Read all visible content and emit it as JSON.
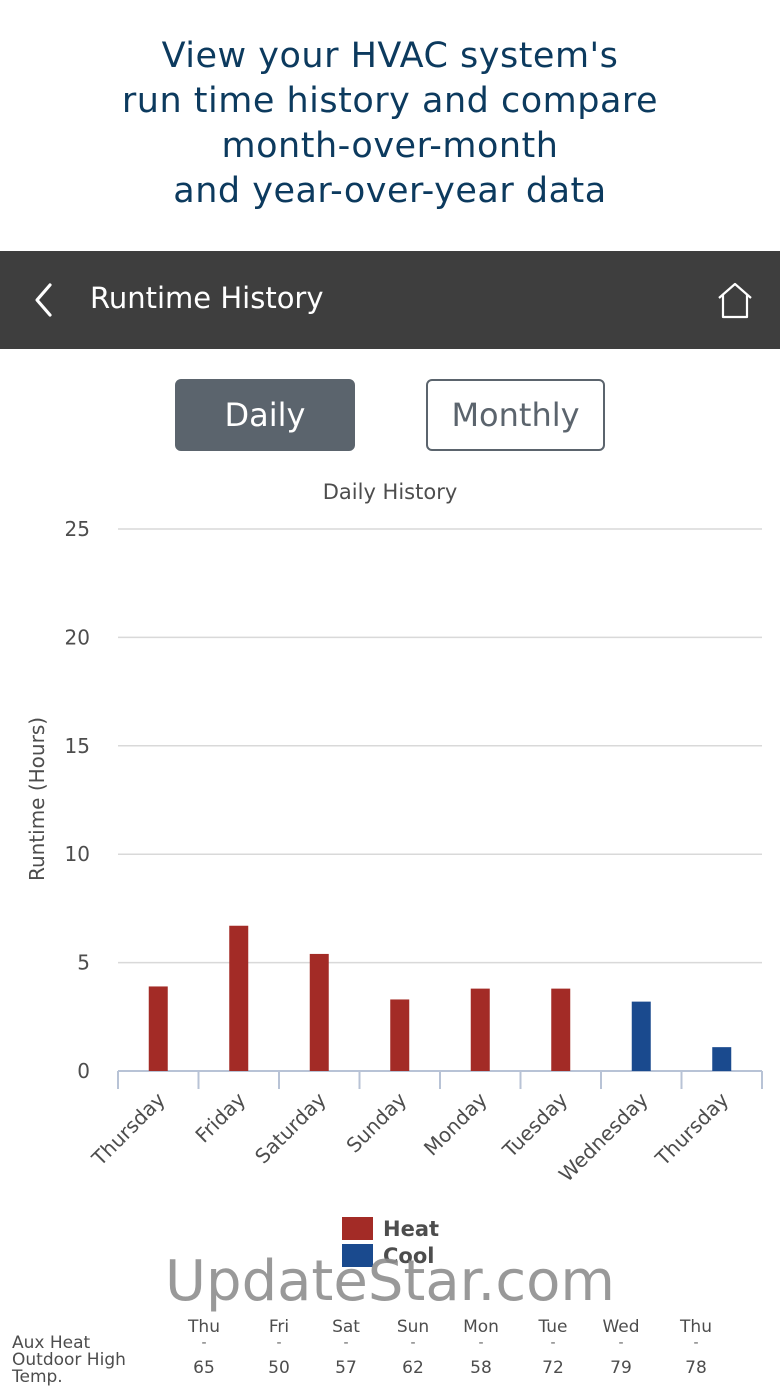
{
  "promo": {
    "lines": [
      "View your HVAC system's",
      "run time history and compare",
      "month-over-month",
      "and year-over-year data"
    ]
  },
  "navbar": {
    "title": "Runtime History",
    "back_icon": "chevron-left-icon",
    "home_icon": "home-icon"
  },
  "segments": {
    "daily": "Daily",
    "monthly": "Monthly",
    "selected": "Daily"
  },
  "chart_data": {
    "type": "bar",
    "title": "Daily History",
    "ylabel": "Runtime (Hours)",
    "xlabel": "",
    "ylim": [
      0,
      25
    ],
    "yticks": [
      0,
      5,
      10,
      15,
      20,
      25
    ],
    "categories": [
      "Thursday",
      "Friday",
      "Saturday",
      "Sunday",
      "Monday",
      "Tuesday",
      "Wednesday",
      "Thursday"
    ],
    "series": [
      {
        "name": "Heat",
        "color": "#a32b26",
        "values": [
          3.9,
          6.7,
          5.4,
          3.3,
          3.8,
          3.8,
          0,
          0
        ]
      },
      {
        "name": "Cool",
        "color": "#1a4a8e",
        "values": [
          0,
          0,
          0,
          0,
          0,
          0,
          3.2,
          1.1
        ]
      }
    ],
    "grid": true,
    "legend_position": "bottom"
  },
  "legend": [
    {
      "label": "Heat",
      "color": "#a32b26"
    },
    {
      "label": "Cool",
      "color": "#1a4a8e"
    }
  ],
  "watermark": "UpdateStar.com",
  "table": {
    "days": [
      "Thu",
      "Fri",
      "Sat",
      "Sun",
      "Mon",
      "Tue",
      "Wed",
      "Thu"
    ],
    "aux_heat_label": "Aux Heat",
    "aux_heat": [
      "-",
      "-",
      "-",
      "-",
      "-",
      "-",
      "-",
      "-"
    ],
    "outdoor_label_1": "Outdoor High",
    "outdoor_label_2": "Temp.",
    "outdoor_high": [
      "65",
      "50",
      "57",
      "62",
      "58",
      "72",
      "79",
      "78"
    ]
  }
}
